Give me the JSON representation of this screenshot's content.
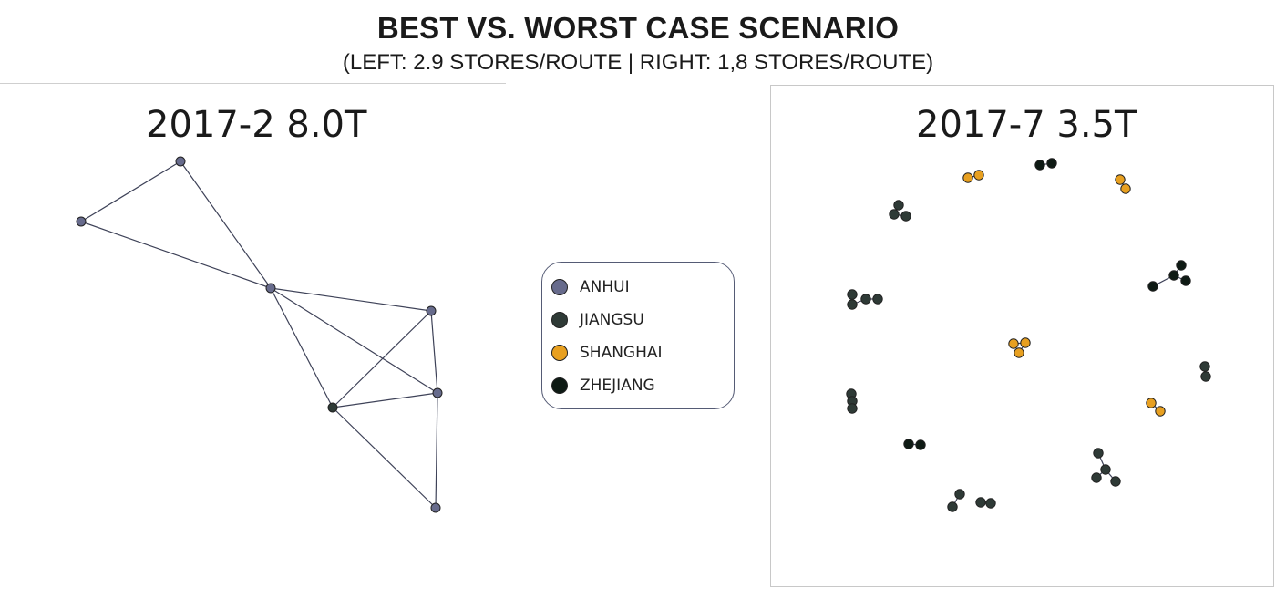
{
  "title": "BEST VS. WORST CASE SCENARIO",
  "subtitle": "(LEFT: 2.9 STORES/ROUTE | RIGHT: 1,8 STORES/ROUTE)",
  "legend": [
    {
      "label": "ANHUI",
      "color": "#676b8c"
    },
    {
      "label": "JIANGSU",
      "color": "#2e3a36"
    },
    {
      "label": "SHANGHAI",
      "color": "#e8a020"
    },
    {
      "label": "ZHEJIANG",
      "color": "#0e1a14"
    }
  ],
  "chart_data": [
    {
      "type": "network",
      "title": "2017-2 8.0T",
      "nodes": [
        {
          "id": "a1",
          "province": "ANHUI"
        },
        {
          "id": "a2",
          "province": "ANHUI"
        },
        {
          "id": "a3",
          "province": "ANHUI"
        },
        {
          "id": "a4",
          "province": "ANHUI"
        },
        {
          "id": "a5",
          "province": "ANHUI"
        },
        {
          "id": "a6",
          "province": "ANHUI"
        },
        {
          "id": "a7",
          "province": "ANHUI"
        },
        {
          "id": "j1",
          "province": "JIANGSU"
        }
      ],
      "edges": [
        [
          "a1",
          "a2"
        ],
        [
          "a1",
          "a3"
        ],
        [
          "a2",
          "a3"
        ],
        [
          "a3",
          "a4"
        ],
        [
          "a3",
          "a6"
        ],
        [
          "a3",
          "j1"
        ],
        [
          "a4",
          "a6"
        ],
        [
          "a4",
          "j1"
        ],
        [
          "j1",
          "a6"
        ],
        [
          "j1",
          "a7"
        ],
        [
          "a6",
          "a7"
        ]
      ]
    },
    {
      "type": "network",
      "title": "2017-7 3.5T",
      "nodes": [
        {
          "id": "z1",
          "province": "ZHEJIANG"
        },
        {
          "id": "z2",
          "province": "ZHEJIANG"
        },
        {
          "id": "s1",
          "province": "SHANGHAI"
        },
        {
          "id": "s2",
          "province": "SHANGHAI"
        },
        {
          "id": "s3",
          "province": "SHANGHAI"
        },
        {
          "id": "s4",
          "province": "SHANGHAI"
        },
        {
          "id": "j1",
          "province": "JIANGSU"
        },
        {
          "id": "j2",
          "province": "JIANGSU"
        },
        {
          "id": "j3",
          "province": "JIANGSU"
        },
        {
          "id": "z3",
          "province": "ZHEJIANG"
        },
        {
          "id": "z4",
          "province": "ZHEJIANG"
        },
        {
          "id": "z5",
          "province": "ZHEJIANG"
        },
        {
          "id": "z6",
          "province": "ZHEJIANG"
        },
        {
          "id": "j4",
          "province": "JIANGSU"
        },
        {
          "id": "j5",
          "province": "JIANGSU"
        },
        {
          "id": "j6",
          "province": "JIANGSU"
        },
        {
          "id": "j7",
          "province": "JIANGSU"
        },
        {
          "id": "s5",
          "province": "SHANGHAI"
        },
        {
          "id": "s6",
          "province": "SHANGHAI"
        },
        {
          "id": "s7",
          "province": "SHANGHAI"
        },
        {
          "id": "j8",
          "province": "JIANGSU"
        },
        {
          "id": "j9",
          "province": "JIANGSU"
        },
        {
          "id": "j10",
          "province": "JIANGSU"
        },
        {
          "id": "j11",
          "province": "JIANGSU"
        },
        {
          "id": "j12",
          "province": "JIANGSU"
        },
        {
          "id": "s8",
          "province": "SHANGHAI"
        },
        {
          "id": "s9",
          "province": "SHANGHAI"
        },
        {
          "id": "z7",
          "province": "ZHEJIANG"
        },
        {
          "id": "z8",
          "province": "ZHEJIANG"
        },
        {
          "id": "j13",
          "province": "JIANGSU"
        },
        {
          "id": "j14",
          "province": "JIANGSU"
        },
        {
          "id": "j15",
          "province": "JIANGSU"
        },
        {
          "id": "j16",
          "province": "JIANGSU"
        },
        {
          "id": "j17",
          "province": "JIANGSU"
        },
        {
          "id": "j18",
          "province": "JIANGSU"
        },
        {
          "id": "j19",
          "province": "JIANGSU"
        },
        {
          "id": "j20",
          "province": "JIANGSU"
        }
      ],
      "edges": [
        [
          "z1",
          "z2"
        ],
        [
          "s1",
          "s2"
        ],
        [
          "s3",
          "s4"
        ],
        [
          "j1",
          "j2"
        ],
        [
          "j2",
          "j3"
        ],
        [
          "z3",
          "z4"
        ],
        [
          "z4",
          "z5"
        ],
        [
          "z4",
          "z6"
        ],
        [
          "j4",
          "j5"
        ],
        [
          "j5",
          "j6"
        ],
        [
          "j6",
          "j7"
        ],
        [
          "s5",
          "s6"
        ],
        [
          "s6",
          "s7"
        ],
        [
          "j8",
          "j9"
        ],
        [
          "j10",
          "j11"
        ],
        [
          "j11",
          "j12"
        ],
        [
          "s8",
          "s9"
        ],
        [
          "z7",
          "z8"
        ],
        [
          "j13",
          "j14"
        ],
        [
          "j14",
          "j15"
        ],
        [
          "j14",
          "j16"
        ],
        [
          "j17",
          "j18"
        ],
        [
          "j19",
          "j20"
        ]
      ]
    }
  ]
}
